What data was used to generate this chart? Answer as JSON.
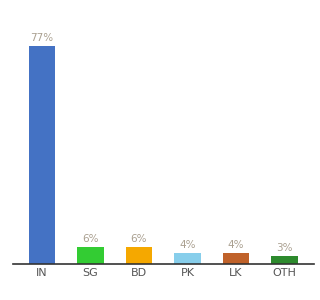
{
  "categories": [
    "IN",
    "SG",
    "BD",
    "PK",
    "LK",
    "OTH"
  ],
  "values": [
    77,
    6,
    6,
    4,
    4,
    3
  ],
  "bar_colors": [
    "#4472c4",
    "#33cc33",
    "#f5a800",
    "#87ceeb",
    "#c0622a",
    "#2d8a2d"
  ],
  "label_color": "#aaa090",
  "xtick_color": "#555555",
  "background_color": "#ffffff",
  "ylim": [
    0,
    88
  ],
  "bar_width": 0.55
}
